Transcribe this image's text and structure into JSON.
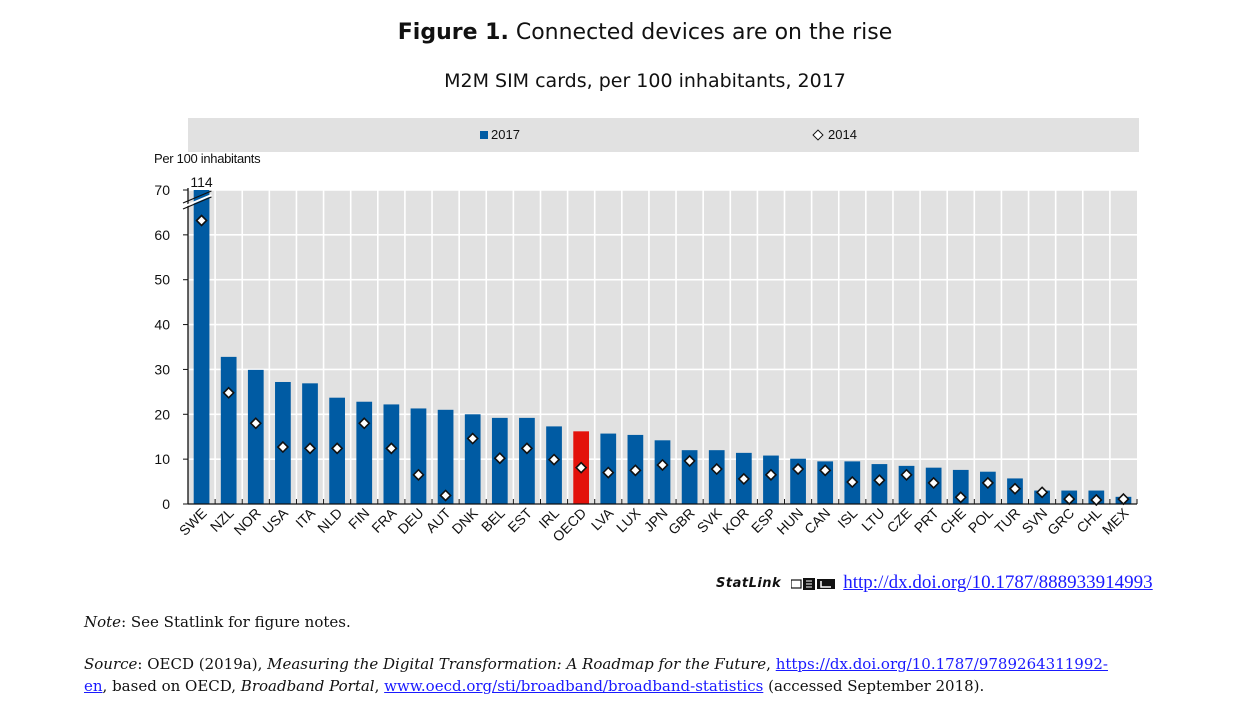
{
  "figure": {
    "label": "Figure 1.",
    "title": "Connected devices are on the rise",
    "subtitle": "M2M SIM cards, per 100 inhabitants, 2017"
  },
  "legend": {
    "series_2017": "2017",
    "series_2014": "2014"
  },
  "y_axis_title": "Per 100 inhabitants",
  "statlink": {
    "label": "StatLink",
    "url": "http://dx.doi.org/10.1787/888933914993"
  },
  "note": {
    "label": "Note",
    "text": ": See Statlink for figure notes."
  },
  "source": {
    "label": "Source",
    "text1": ": OECD (2019a), ",
    "title1": "Measuring the Digital Transformation: A Roadmap for the Future",
    "text2": ", ",
    "link1_part1": "https://dx.doi.org/10.1787/9789264311992-",
    "link1_part2": "en",
    "text3": ", based on OECD, ",
    "title2": "Broadband Portal",
    "text4": ", ",
    "link2": "www.oecd.org/sti/broadband/broadband-statistics",
    "text5": " (accessed September 2018)."
  },
  "chart_data": {
    "type": "bar",
    "title": "Connected devices are on the rise",
    "subtitle": "M2M SIM cards, per 100 inhabitants, 2017",
    "xlabel": "",
    "ylabel": "Per 100 inhabitants",
    "ylim": [
      0,
      70
    ],
    "yticks": [
      0,
      10,
      20,
      30,
      40,
      50,
      60,
      70
    ],
    "grid": true,
    "legend_position": "top",
    "axis_break": {
      "category": "SWE",
      "label": "114"
    },
    "highlight": {
      "category": "OECD",
      "color": "#e3120b"
    },
    "colors": {
      "bar": "#005ba3",
      "highlight": "#e3120b",
      "marker_fill": "#ffffff",
      "marker_stroke": "#111111",
      "plot_bg": "#e1e1e1"
    },
    "categories": [
      "SWE",
      "NZL",
      "NOR",
      "USA",
      "ITA",
      "NLD",
      "FIN",
      "FRA",
      "DEU",
      "AUT",
      "DNK",
      "BEL",
      "EST",
      "IRL",
      "OECD",
      "LVA",
      "LUX",
      "JPN",
      "GBR",
      "SVK",
      "KOR",
      "ESP",
      "HUN",
      "CAN",
      "ISL",
      "LTU",
      "CZE",
      "PRT",
      "CHE",
      "POL",
      "TUR",
      "SVN",
      "GRC",
      "CHL",
      "MEX"
    ],
    "series": [
      {
        "name": "2017",
        "type": "bar",
        "values": [
          114,
          32.8,
          29.9,
          27.2,
          26.9,
          23.7,
          22.8,
          22.2,
          21.3,
          21.0,
          20.0,
          19.2,
          19.2,
          17.3,
          16.2,
          15.7,
          15.4,
          14.2,
          12.0,
          12.0,
          11.4,
          10.8,
          10.1,
          9.5,
          9.5,
          8.9,
          8.5,
          8.1,
          7.6,
          7.2,
          5.7,
          3.0,
          3.0,
          3.0,
          1.6
        ]
      },
      {
        "name": "2014",
        "type": "marker-diamond",
        "values": [
          63.2,
          24.8,
          18.0,
          12.7,
          12.4,
          12.4,
          18.0,
          12.4,
          6.5,
          1.9,
          14.6,
          10.2,
          12.4,
          9.9,
          8.1,
          7.0,
          7.5,
          8.7,
          9.6,
          7.8,
          5.6,
          6.5,
          7.8,
          7.5,
          4.9,
          5.3,
          6.5,
          4.7,
          1.5,
          4.7,
          3.4,
          2.6,
          1.1,
          0.9,
          1.1
        ]
      }
    ]
  }
}
